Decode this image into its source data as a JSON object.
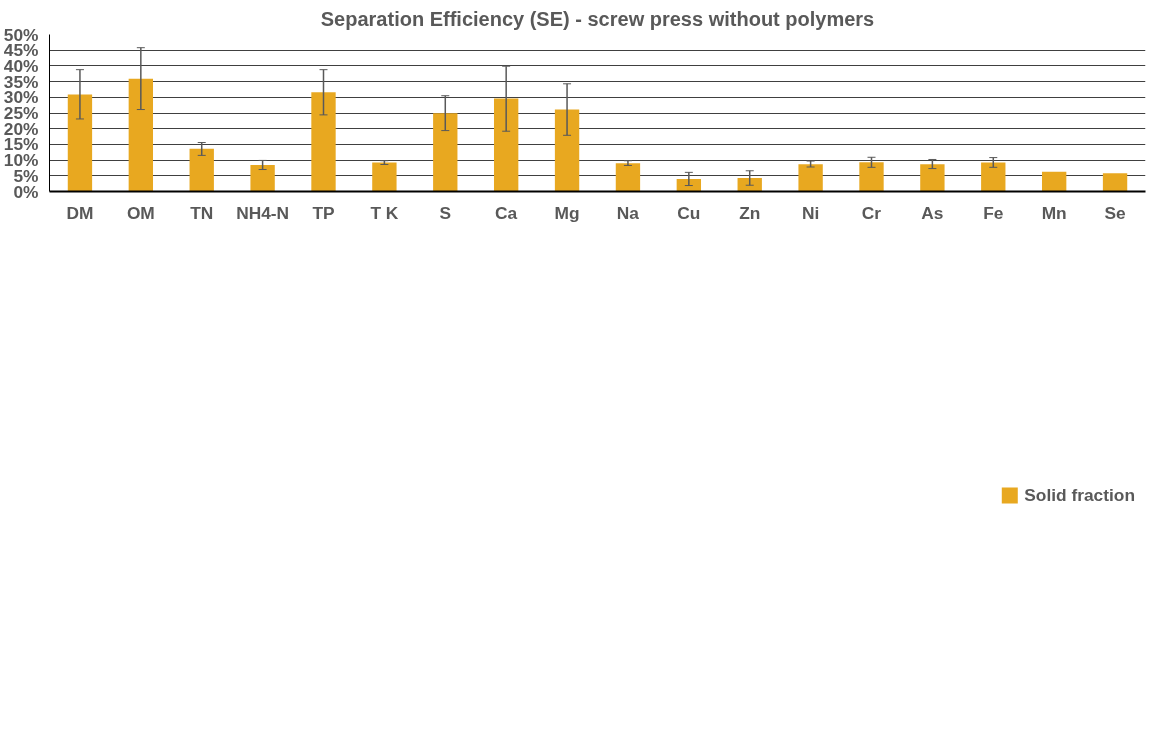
{
  "chart_data": {
    "type": "bar",
    "title": "Separation Efficiency (SE) - screw press without polymers",
    "categories": [
      "DM",
      "OM",
      "TN",
      "NH4-N",
      "TP",
      "T K",
      "S",
      "Ca",
      "Mg",
      "Na",
      "Cu",
      "Zn",
      "Ni",
      "Cr",
      "As",
      "Fe",
      "Mn",
      "Se"
    ],
    "series": [
      {
        "name": "Solid fraction",
        "color": "#e8a820",
        "values": [
          30.9,
          35.9,
          13.6,
          8.4,
          31.6,
          9.2,
          24.9,
          29.6,
          26.1,
          9.0,
          4.0,
          4.3,
          8.7,
          9.3,
          8.7,
          9.2,
          6.3,
          5.8
        ],
        "errors": [
          [
            23.1,
            38.8
          ],
          [
            26.1,
            45.8
          ],
          [
            11.5,
            15.6
          ],
          [
            7.0,
            9.9
          ],
          [
            24.4,
            38.8
          ],
          [
            8.6,
            9.8
          ],
          [
            19.4,
            30.5
          ],
          [
            19.2,
            39.9
          ],
          [
            17.9,
            34.3
          ],
          [
            8.3,
            9.8
          ],
          [
            1.9,
            6.1
          ],
          [
            2.0,
            6.6
          ],
          [
            7.8,
            9.7
          ],
          [
            7.7,
            10.9
          ],
          [
            7.3,
            10.2
          ],
          [
            7.7,
            10.8
          ],
          null,
          null
        ]
      }
    ],
    "ylim": [
      0,
      50
    ],
    "yticks": [
      {
        "value": 0,
        "label": "0%"
      },
      {
        "value": 5,
        "label": "5%"
      },
      {
        "value": 10,
        "label": "10%"
      },
      {
        "value": 15,
        "label": "15%"
      },
      {
        "value": 20,
        "label": "20%"
      },
      {
        "value": 25,
        "label": "25%"
      },
      {
        "value": 30,
        "label": "30%"
      },
      {
        "value": 35,
        "label": "35%"
      },
      {
        "value": 40,
        "label": "40%"
      },
      {
        "value": 45,
        "label": "45%"
      },
      {
        "value": 50,
        "label": "50%"
      }
    ],
    "grid": "y",
    "legend": "bottom"
  }
}
